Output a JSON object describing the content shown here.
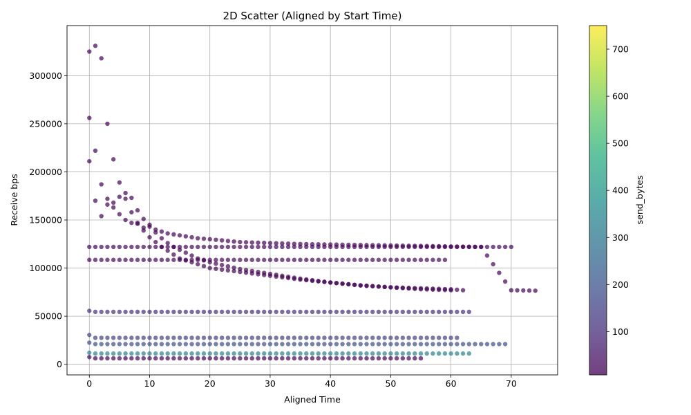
{
  "chart_data": {
    "type": "scatter",
    "title": "2D Scatter (Aligned by Start Time)",
    "xlabel": "Aligned Time",
    "ylabel": "Receive bps",
    "xlim": [
      -3.7,
      77.7
    ],
    "ylim": [
      -11000,
      352000
    ],
    "xticks": [
      0,
      10,
      20,
      30,
      40,
      50,
      60,
      70
    ],
    "yticks": [
      0,
      50000,
      100000,
      150000,
      200000,
      250000,
      300000
    ],
    "grid": true,
    "colorbar": {
      "label": "send_bytes",
      "range": [
        8,
        750
      ],
      "ticks": [
        100,
        200,
        300,
        400,
        500,
        600,
        700
      ],
      "colormap": "viridis",
      "alpha": 0.7
    },
    "series": [
      {
        "send_bytes": 8,
        "x_start": 0,
        "x_end": 55,
        "y_first": 7500,
        "y": 6200
      },
      {
        "send_bytes": 340,
        "x_start": 0,
        "x_end": 63,
        "y_first": 12000,
        "y": 11200
      },
      {
        "send_bytes": 180,
        "x_start": 0,
        "x_end": 69,
        "y_first": 22500,
        "y": 21000
      },
      {
        "send_bytes": 150,
        "x_start": 0,
        "x_end": 61,
        "y_first": 30500,
        "y": 27500
      },
      {
        "send_bytes": 100,
        "x_start": 0,
        "x_end": 63,
        "y_first": 55500,
        "y": 54500
      },
      {
        "send_bytes": 20,
        "x_start": 0,
        "x_end": 59,
        "y_first": 108500,
        "y": 108500
      },
      {
        "send_bytes": 25,
        "x_start": 0,
        "x_end": 70,
        "y": 122000
      }
    ],
    "decay_series": [
      {
        "send_bytes": 10,
        "x": [
          0,
          1,
          2,
          3,
          4,
          5,
          6,
          7,
          8,
          9,
          10,
          11,
          12,
          13,
          14,
          15,
          16,
          17,
          18,
          19,
          20,
          25,
          30,
          35,
          40,
          45,
          50,
          55,
          60,
          65,
          70,
          74
        ],
        "y": [
          325000,
          331000,
          318000,
          250000,
          213000,
          189000,
          178000,
          173000,
          160000,
          151000,
          145000,
          140000,
          138000,
          136000,
          135000,
          134000,
          133000,
          132000,
          131000,
          130500,
          130000,
          127000,
          126000,
          125000,
          124500,
          124000,
          123500,
          123000,
          122500,
          122000,
          77000,
          76500
        ]
      },
      {
        "send_bytes": 12,
        "x": [
          0,
          1,
          2,
          3,
          4,
          5,
          6,
          7,
          8,
          9,
          10,
          11,
          12,
          13,
          14,
          15,
          16,
          17,
          18,
          19,
          20,
          25,
          30,
          35,
          40,
          45,
          50,
          55,
          60,
          62
        ],
        "y": [
          256000,
          222000,
          187000,
          172000,
          168000,
          174000,
          172000,
          158000,
          147000,
          142000,
          132000,
          127000,
          122000,
          118000,
          114000,
          110000,
          108000,
          106000,
          104000,
          102000,
          100000,
          96000,
          92000,
          88000,
          85000,
          82000,
          80000,
          79000,
          78000,
          77000
        ]
      },
      {
        "send_bytes": 15,
        "x": [
          0,
          1,
          2,
          3,
          4,
          5,
          6,
          7,
          8,
          9,
          10,
          11,
          12,
          13,
          14,
          15,
          16,
          17,
          18,
          19,
          20,
          25,
          30,
          35,
          40,
          45,
          50,
          55,
          60
        ],
        "y": [
          211000,
          170000,
          154000,
          166000,
          163000,
          156000,
          150000,
          147000,
          146000,
          139000,
          143000,
          137000,
          131000,
          126000,
          122000,
          119000,
          116000,
          113000,
          110000,
          108000,
          106000,
          99000,
          94000,
          89000,
          85000,
          82000,
          80000,
          78000,
          77000
        ]
      }
    ]
  }
}
